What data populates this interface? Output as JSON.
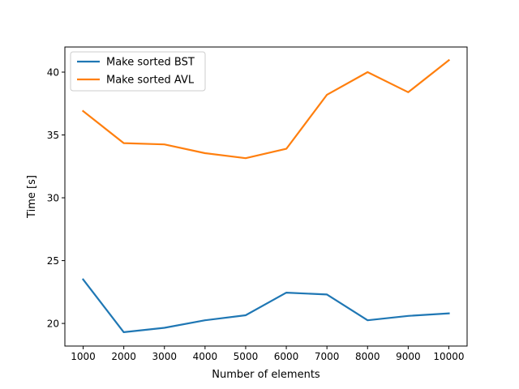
{
  "chart_data": {
    "type": "line",
    "title": "",
    "xlabel": "Number of elements",
    "ylabel": "Time [s]",
    "x": [
      1000,
      2000,
      3000,
      4000,
      5000,
      6000,
      7000,
      8000,
      9000,
      10000
    ],
    "xticks": [
      1000,
      2000,
      3000,
      4000,
      5000,
      6000,
      7000,
      8000,
      9000,
      10000
    ],
    "yticks": [
      20,
      25,
      30,
      35,
      40
    ],
    "xlim": [
      550,
      10450
    ],
    "ylim": [
      18.2,
      42.0
    ],
    "grid": false,
    "legend_position": "top-left",
    "series": [
      {
        "name": "Make sorted BST",
        "color": "#1f77b4",
        "values": [
          23.5,
          19.3,
          19.65,
          20.25,
          20.65,
          22.45,
          22.3,
          20.25,
          20.6,
          20.8
        ]
      },
      {
        "name": "Make sorted AVL",
        "color": "#ff7f0e",
        "values": [
          36.9,
          34.35,
          34.25,
          33.55,
          33.15,
          33.9,
          38.2,
          40.0,
          38.4,
          40.95
        ]
      }
    ]
  }
}
